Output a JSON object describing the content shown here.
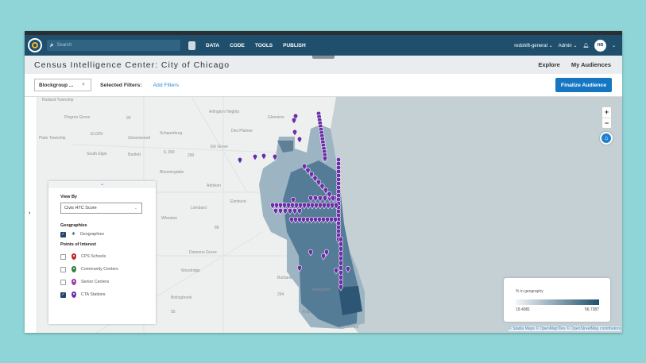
{
  "nav": {
    "search_placeholder": "Search",
    "items": [
      "DATA",
      "CODE",
      "TOOLS",
      "PUBLISH"
    ],
    "workspace": "redshift-general ⌄",
    "role": "Admin ⌄",
    "avatar": "HB",
    "avatar_chevron": "⌄"
  },
  "header": {
    "title": "Census Intelligence Center: City of Chicago",
    "tabs": [
      "Explore",
      "My Audiences"
    ]
  },
  "filters": {
    "geography_select": "Blockgroup ...",
    "selected_label": "Selected Filters:",
    "add_filters": "Add Filters",
    "finalize": "Finalize Audience"
  },
  "panel": {
    "view_by_label": "View By",
    "view_by_value": "Civis HTC Score",
    "geographies_heading": "Geographies",
    "geographies_item": {
      "label": "Geographies",
      "checked": true
    },
    "poi_heading": "Points of Interest",
    "poi": [
      {
        "label": "CPS Schools",
        "checked": false,
        "color": "#c0262d"
      },
      {
        "label": "Community Centers",
        "checked": false,
        "color": "#2e7d3a"
      },
      {
        "label": "Senior Centers",
        "checked": false,
        "color": "#a43aa8"
      },
      {
        "label": "CTA Stations",
        "checked": true,
        "color": "#6a2fa8"
      }
    ]
  },
  "map": {
    "place_labels": [
      "Rutland Township",
      "Pingree Grove",
      "ELGIN",
      "Plato Township",
      "Streamwood",
      "Schaumburg",
      "South Elgin",
      "Bartlett",
      "IL 390",
      "290",
      "Elk Grove",
      "Arlington Heights",
      "Des Plaines",
      "Glenview",
      "Bloomingdale",
      "90",
      "Addison",
      "Elmhurst",
      "Lombard",
      "Wheaton",
      "88",
      "Downers Grove",
      "Woodridge",
      "Bolingbrook",
      "Burbank",
      "Evergreen",
      "294",
      "Alsip",
      "Dolton",
      "55"
    ],
    "zoom_in": "+",
    "zoom_out": "−",
    "attribution": "© Stadia Maps © OpenMapTiles © OpenStreetMap contributors"
  },
  "legend": {
    "title": "% in geography",
    "min": "19.4081",
    "max": "56.7387",
    "color_low": "#f3f6f8",
    "color_high": "#1f4f6c"
  },
  "colors": {
    "nav": "#1f4f6c",
    "accent": "#1577c4",
    "station_pin": "#6a2fa8"
  }
}
